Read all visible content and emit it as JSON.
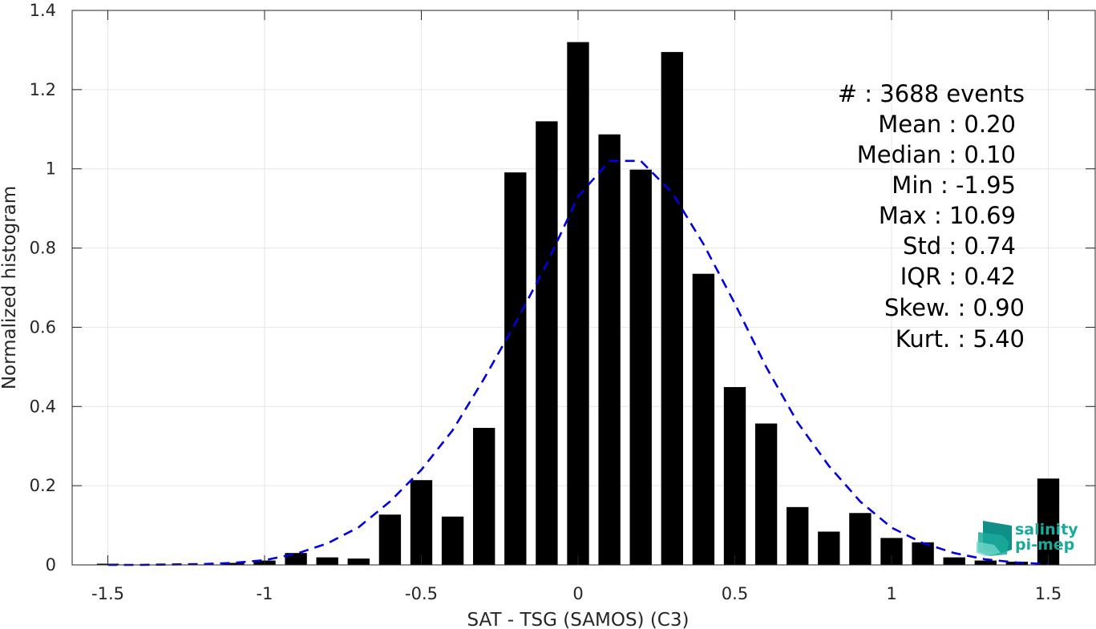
{
  "chart_data": {
    "type": "bar",
    "xlabel": "SAT - TSG (SAMOS) (C3)",
    "ylabel": "Normalized histogram",
    "xlim": [
      -1.6,
      1.6
    ],
    "ylim": [
      0,
      1.4
    ],
    "xticks": [
      -1.5,
      -1,
      -0.5,
      0,
      0.5,
      1,
      1.5
    ],
    "xtick_labels": [
      "-1.5",
      "-1",
      "-0.5",
      "0",
      "0.5",
      "1",
      "1.5"
    ],
    "yticks": [
      0,
      0.2,
      0.4,
      0.6,
      0.8,
      1,
      1.2,
      1.4
    ],
    "ytick_labels": [
      "0",
      "0.2",
      "0.4",
      "0.6",
      "0.8",
      "1",
      "1.2",
      "1.4"
    ],
    "grid": true,
    "bar_width": 0.07,
    "bar_color": "#000000",
    "bars": [
      {
        "x": -1.5,
        "y": 0.003
      },
      {
        "x": -1.4,
        "y": 0.0
      },
      {
        "x": -1.3,
        "y": 0.0
      },
      {
        "x": -1.2,
        "y": 0.0
      },
      {
        "x": -1.1,
        "y": 0.005
      },
      {
        "x": -1.0,
        "y": 0.011
      },
      {
        "x": -0.9,
        "y": 0.03
      },
      {
        "x": -0.8,
        "y": 0.019
      },
      {
        "x": -0.7,
        "y": 0.016
      },
      {
        "x": -0.6,
        "y": 0.127
      },
      {
        "x": -0.5,
        "y": 0.214
      },
      {
        "x": -0.4,
        "y": 0.122
      },
      {
        "x": -0.3,
        "y": 0.346
      },
      {
        "x": -0.2,
        "y": 0.991
      },
      {
        "x": -0.1,
        "y": 1.12
      },
      {
        "x": 0.0,
        "y": 1.32
      },
      {
        "x": 0.1,
        "y": 1.087
      },
      {
        "x": 0.2,
        "y": 0.998
      },
      {
        "x": 0.3,
        "y": 1.295
      },
      {
        "x": 0.4,
        "y": 0.735
      },
      {
        "x": 0.5,
        "y": 0.449
      },
      {
        "x": 0.6,
        "y": 0.357
      },
      {
        "x": 0.7,
        "y": 0.146
      },
      {
        "x": 0.8,
        "y": 0.084
      },
      {
        "x": 0.9,
        "y": 0.131
      },
      {
        "x": 1.0,
        "y": 0.068
      },
      {
        "x": 1.1,
        "y": 0.057
      },
      {
        "x": 1.2,
        "y": 0.019
      },
      {
        "x": 1.3,
        "y": 0.011
      },
      {
        "x": 1.4,
        "y": 0.008
      },
      {
        "x": 1.5,
        "y": 0.218
      }
    ],
    "fit_curve": {
      "style": "dashed",
      "color": "#0000e0",
      "points": [
        [
          -1.5,
          0.0
        ],
        [
          -1.4,
          0.0
        ],
        [
          -1.3,
          0.001
        ],
        [
          -1.2,
          0.002
        ],
        [
          -1.1,
          0.005
        ],
        [
          -1.0,
          0.012
        ],
        [
          -0.9,
          0.028
        ],
        [
          -0.8,
          0.054
        ],
        [
          -0.7,
          0.095
        ],
        [
          -0.6,
          0.16
        ],
        [
          -0.5,
          0.24
        ],
        [
          -0.4,
          0.34
        ],
        [
          -0.3,
          0.47
        ],
        [
          -0.2,
          0.61
        ],
        [
          -0.1,
          0.76
        ],
        [
          0.0,
          0.93
        ],
        [
          0.1,
          1.02
        ],
        [
          0.2,
          1.02
        ],
        [
          0.3,
          0.94
        ],
        [
          0.4,
          0.81
        ],
        [
          0.5,
          0.66
        ],
        [
          0.6,
          0.5
        ],
        [
          0.7,
          0.36
        ],
        [
          0.8,
          0.25
        ],
        [
          0.9,
          0.16
        ],
        [
          1.0,
          0.094
        ],
        [
          1.1,
          0.055
        ],
        [
          1.2,
          0.03
        ],
        [
          1.3,
          0.014
        ],
        [
          1.4,
          0.006
        ],
        [
          1.5,
          0.002
        ]
      ]
    },
    "stats": {
      "count": "#  : 3688 events",
      "mean": "Mean : 0.20",
      "median": "Median : 0.10",
      "min": "Min : -1.95",
      "max": "Max : 10.69",
      "std": "Std : 0.74",
      "iqr": "IQR : 0.42",
      "skew": "Skew. : 0.90",
      "kurt": "Kurt. : 5.40"
    }
  },
  "logo": {
    "line1": "salinity",
    "line2": "pi-mep",
    "color": "#1aaa9b",
    "icon": "salinity-pimep-logo-icon"
  }
}
